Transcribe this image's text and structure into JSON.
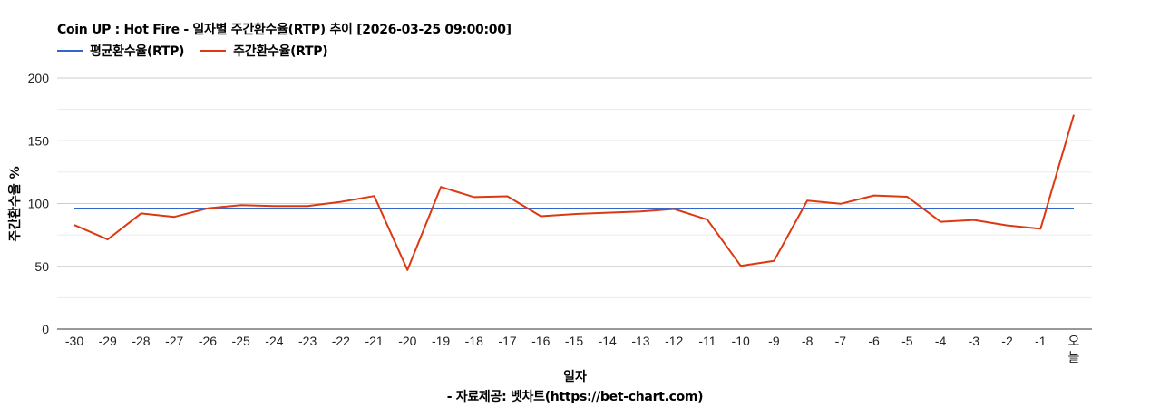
{
  "chart_data": {
    "type": "line",
    "title": "Coin UP : Hot Fire - 일자별 주간환수율(RTP) 추이 [2026-03-25 09:00:00]",
    "xlabel": "일자",
    "ylabel": "주간환수율 %",
    "source": "- 자료제공: 벳차트(https://bet-chart.com)",
    "categories": [
      "-30",
      "-29",
      "-28",
      "-27",
      "-26",
      "-25",
      "-24",
      "-23",
      "-22",
      "-21",
      "-20",
      "-19",
      "-18",
      "-17",
      "-16",
      "-15",
      "-14",
      "-13",
      "-12",
      "-11",
      "-10",
      "-9",
      "-8",
      "-7",
      "-6",
      "-5",
      "-4",
      "-3",
      "-2",
      "-1",
      "오늘"
    ],
    "series": [
      {
        "name": "평균환수율(RTP)",
        "color": "#3366cc",
        "values": [
          96,
          96,
          96,
          96,
          96,
          96,
          96,
          96,
          96,
          96,
          96,
          96,
          96,
          96,
          96,
          96,
          96,
          96,
          96,
          96,
          96,
          96,
          96,
          96,
          96,
          96,
          96,
          96,
          96,
          96,
          96
        ]
      },
      {
        "name": "주간환수율(RTP)",
        "color": "#dc3912",
        "values": [
          82.9,
          71.4,
          92.1,
          89.4,
          96.2,
          98.8,
          98.0,
          98.0,
          101.4,
          106.0,
          47.1,
          113.2,
          105.1,
          105.8,
          89.9,
          91.6,
          92.7,
          93.7,
          95.7,
          87.2,
          50.4,
          54.3,
          102.4,
          99.8,
          106.4,
          105.4,
          85.5,
          86.9,
          82.6,
          79.9,
          170.6
        ]
      }
    ],
    "ylim": [
      0,
      200
    ],
    "yticks": [
      0,
      50,
      100,
      150,
      200
    ],
    "minor_gridlines": [
      25,
      75,
      125,
      175
    ],
    "grid": true,
    "legend_position": "top"
  }
}
